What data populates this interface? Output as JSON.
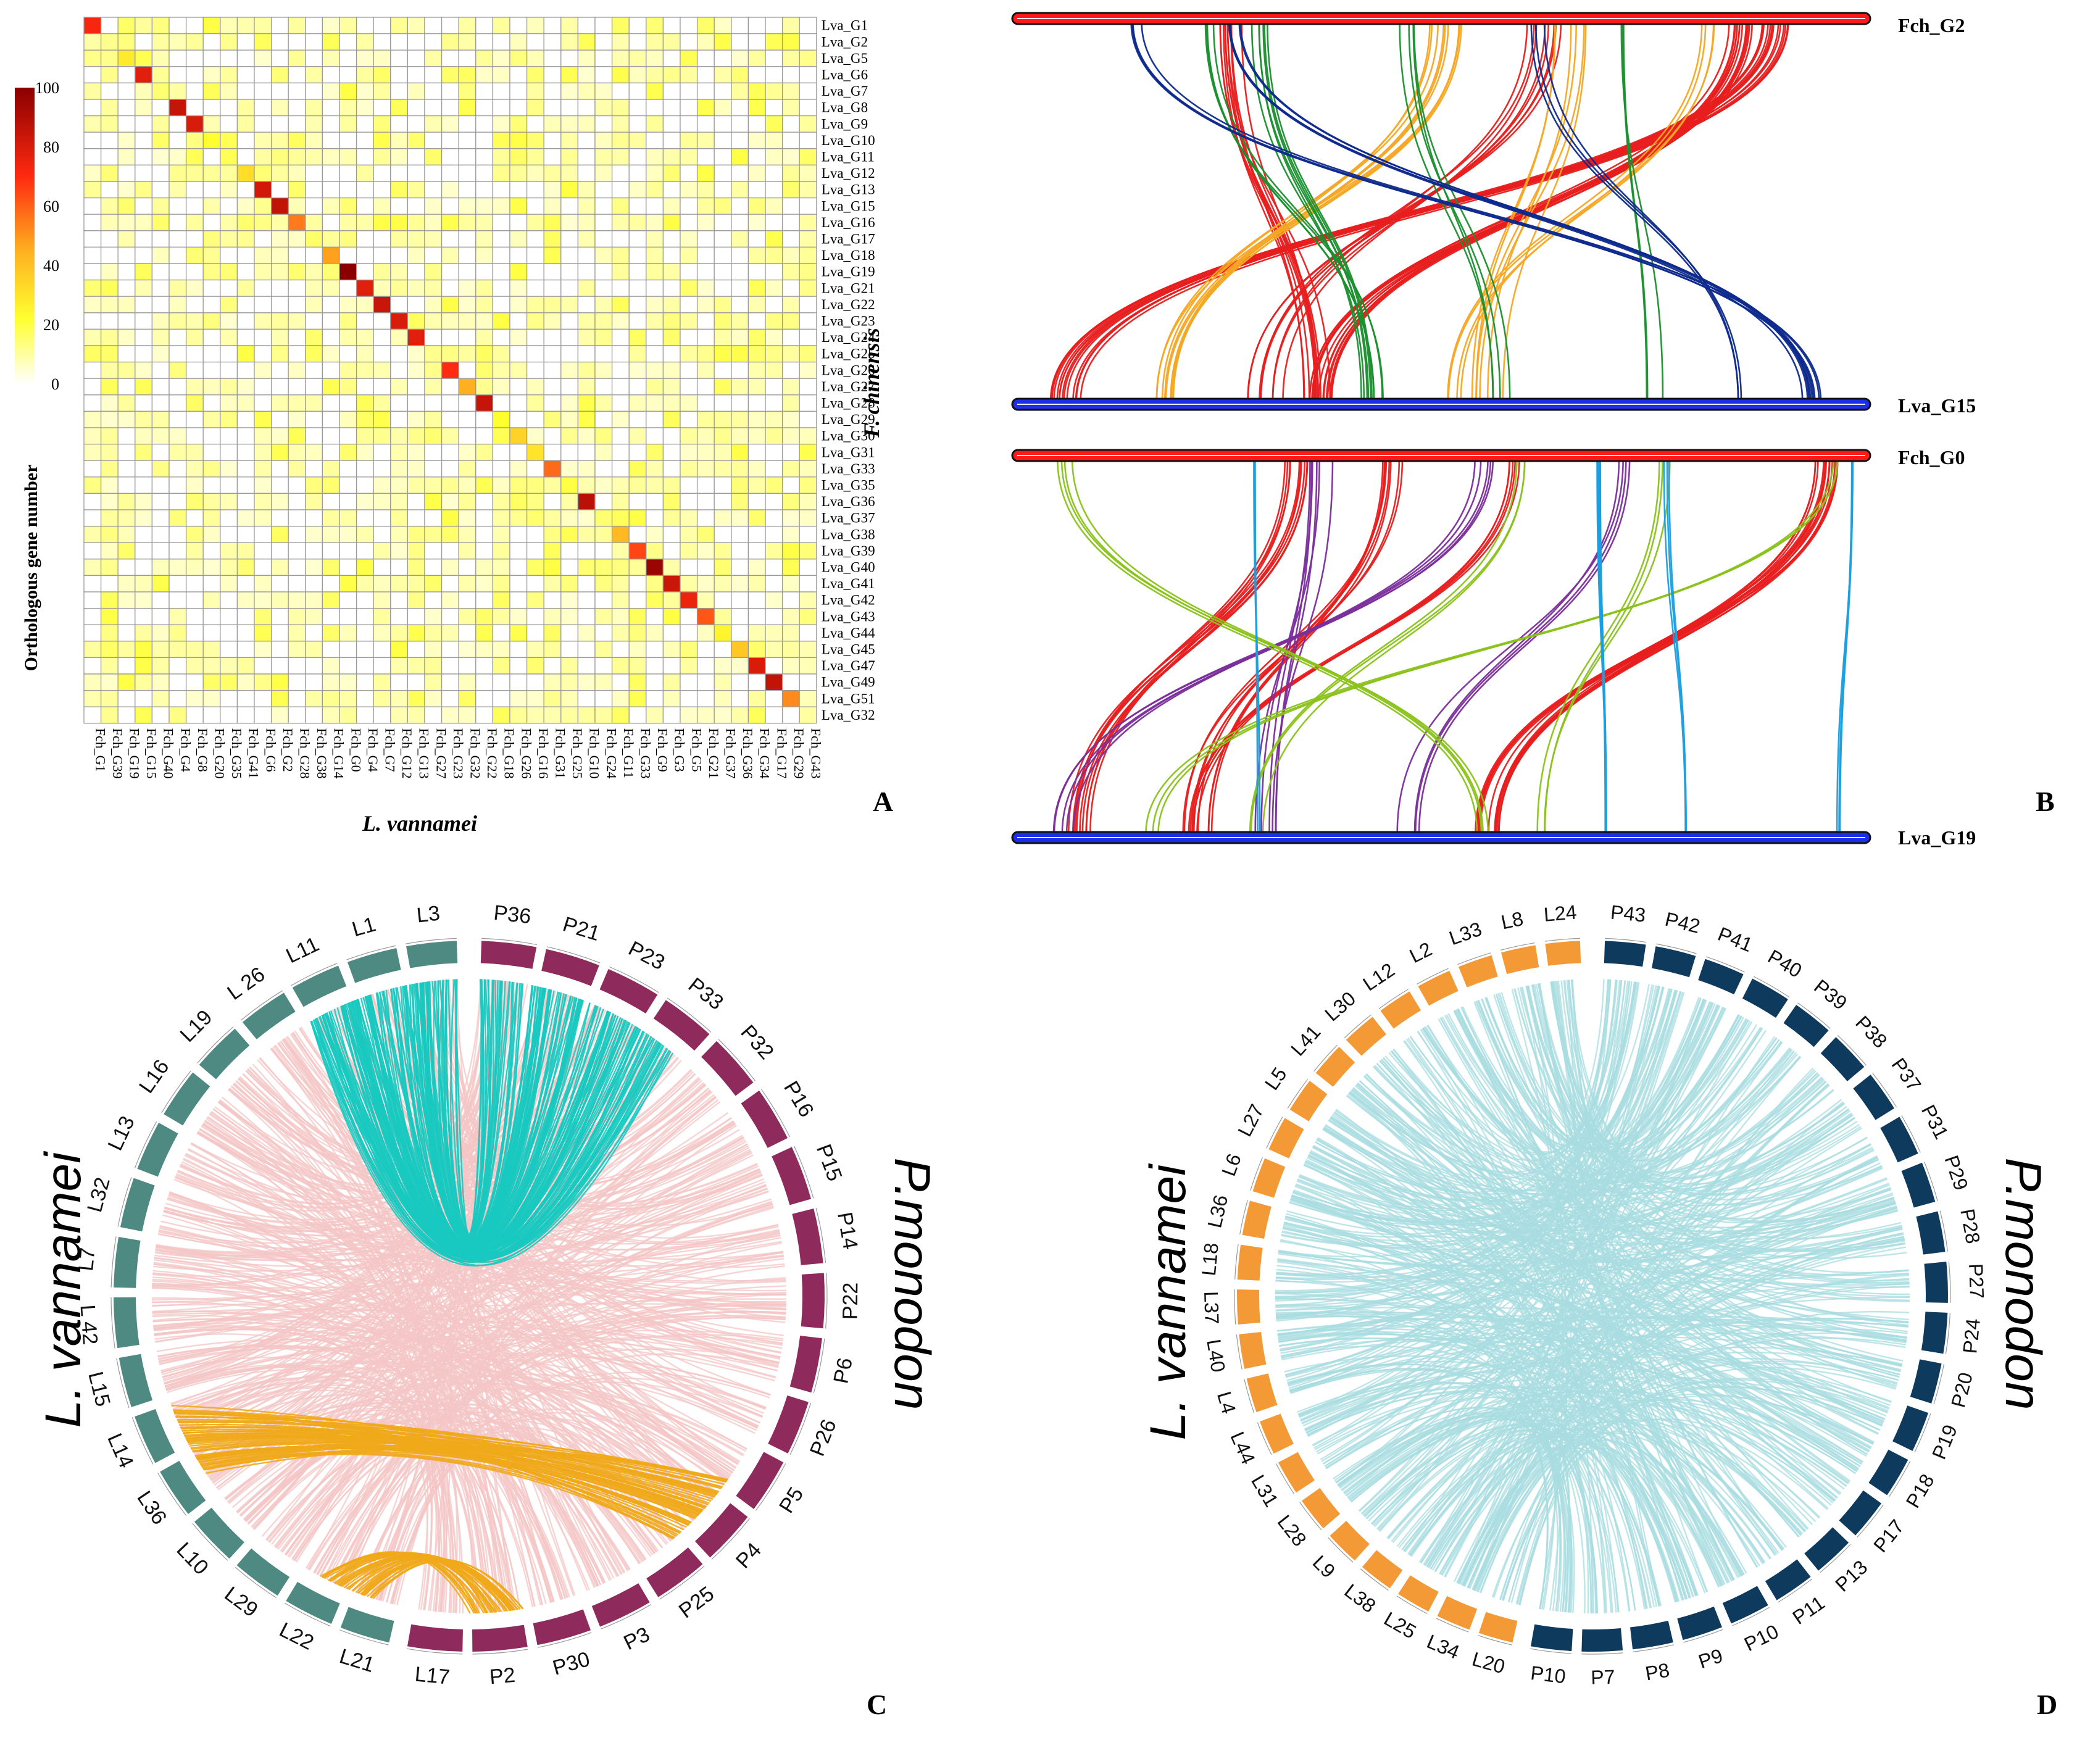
{
  "panel_labels": {
    "a": "A",
    "b": "B",
    "c": "C",
    "d": "D"
  },
  "chart_data": [
    {
      "type": "heatmap",
      "panel": "A",
      "xlabel": "L. vannamei",
      "ylabel": "F. chinensis",
      "colorbar": {
        "label": "Orthologous gene number",
        "ticks": [
          0,
          20,
          40,
          60,
          80,
          100
        ],
        "range": [
          0,
          100
        ]
      },
      "rows": [
        "Lva_G1",
        "Lva_G2",
        "Lva_G5",
        "Lva_G6",
        "Lva_G7",
        "Lva_G8",
        "Lva_G9",
        "Lva_G10",
        "Lva_G11",
        "Lva_G12",
        "Lva_G13",
        "Lva_G15",
        "Lva_G16",
        "Lva_G17",
        "Lva_G18",
        "Lva_G19",
        "Lva_G21",
        "Lva_G22",
        "Lva_G23",
        "Lva_G24",
        "Lva_G25",
        "Lva_G26",
        "Lva_G27",
        "Lva_G28",
        "Lva_G29",
        "Lva_G30",
        "Lva_G31",
        "Lva_G33",
        "Lva_G35",
        "Lva_G36",
        "Lva_G37",
        "Lva_G38",
        "Lva_G39",
        "Lva_G40",
        "Lva_G41",
        "Lva_G42",
        "Lva_G43",
        "Lva_G44",
        "Lva_G45",
        "Lva_G47",
        "Lva_G49",
        "Lva_G51",
        "Lva_G32"
      ],
      "columns": [
        "Fch_G1",
        "Fch_G39",
        "Fch_G19",
        "Fch_G15",
        "Fch_G40",
        "Fch_G4",
        "Fch_G8",
        "Fch_G20",
        "Fch_G35",
        "Fch_G41",
        "Fch_G6",
        "Fch_G2",
        "Fch_G28",
        "Fch_G38",
        "Fch_G14",
        "Fch_G0",
        "Fch_G4",
        "Fch_G7",
        "Fch_G12",
        "Fch_G13",
        "Fch_G27",
        "Fch_G23",
        "Fch_G32",
        "Fch_G22",
        "Fch_G18",
        "Fch_G26",
        "Fch_G16",
        "Fch_G31",
        "Fch_G25",
        "Fch_G10",
        "Fch_G24",
        "Fch_G11",
        "Fch_G33",
        "Fch_G9",
        "Fch_G3",
        "Fch_G5",
        "Fch_G21",
        "Fch_G37",
        "Fch_G36",
        "Fch_G34",
        "Fch_G17",
        "Fch_G29",
        "Fch_G43"
      ],
      "diagonal_values": [
        72,
        12,
        28,
        78,
        15,
        85,
        80,
        22,
        18,
        32,
        82,
        86,
        55,
        16,
        48,
        100,
        78,
        84,
        80,
        78,
        12,
        70,
        45,
        85,
        22,
        35,
        30,
        58,
        20,
        88,
        15,
        42,
        65,
        96,
        84,
        75,
        62,
        25,
        38,
        80,
        86,
        52,
        10
      ],
      "background_range": [
        0,
        20
      ]
    },
    {
      "type": "synteny",
      "panel": "B",
      "pairs": [
        {
          "top": "Fch_G2",
          "bottom": "Lva_G15",
          "link_colors": [
            "#e81e1e",
            "#f6a623",
            "#1a8f2e",
            "#0e2a8c"
          ]
        },
        {
          "top": "Fch_G0",
          "bottom": "Lva_G19",
          "link_colors": [
            "#e81e1e",
            "#7a2e9a",
            "#8ac21a",
            "#1a9fe0"
          ]
        }
      ]
    },
    {
      "type": "circos",
      "panel": "C",
      "left_species": "L. vannamei",
      "right_species": "P.monodon",
      "left_color": "#4e8a82",
      "right_color": "#8e2a5c",
      "link_colors": {
        "background": "#f4c6c6",
        "highlight_1": "#18c9c0",
        "highlight_2": "#f0a818"
      },
      "left_chromosomes": [
        "L21",
        "L22",
        "L29",
        "L10",
        "L36",
        "L14",
        "L15",
        "L 42",
        "L7",
        "L32",
        "L13",
        "L16",
        "L19",
        "L 26",
        "L11",
        "L1",
        "L3"
      ],
      "right_chromosomes": [
        "P36",
        "P21",
        "P23",
        "P33",
        "P32",
        "P16",
        "P15",
        "P14",
        "P22",
        "P6",
        "P26",
        "P5",
        "P4",
        "P25",
        "P3",
        "P30",
        "P2",
        "L17"
      ]
    },
    {
      "type": "circos",
      "panel": "D",
      "left_species": "L. vannamei",
      "right_species": "P.monodon",
      "left_color": "#f39a36",
      "right_color": "#0e3a5e",
      "link_colors": {
        "background": "#a8dce0"
      },
      "left_chromosomes": [
        "L20",
        "L34",
        "L25",
        "L38",
        "L9",
        "L28",
        "L31",
        "L44",
        "L4",
        "L40",
        "L37",
        "L18",
        "L36",
        "L6",
        "L27",
        "L5",
        "L41",
        "L30",
        "L12",
        "L2",
        "L33",
        "L8",
        "L24"
      ],
      "right_chromosomes": [
        "P43",
        "P42",
        "P41",
        "P40",
        "P39",
        "P38",
        "P37",
        "P31",
        "P29",
        "P28",
        "P27",
        "P24",
        "P20",
        "P19",
        "P18",
        "P17",
        "P13",
        "P11",
        "P10",
        "P9",
        "P8",
        "P7",
        "P10"
      ]
    }
  ]
}
